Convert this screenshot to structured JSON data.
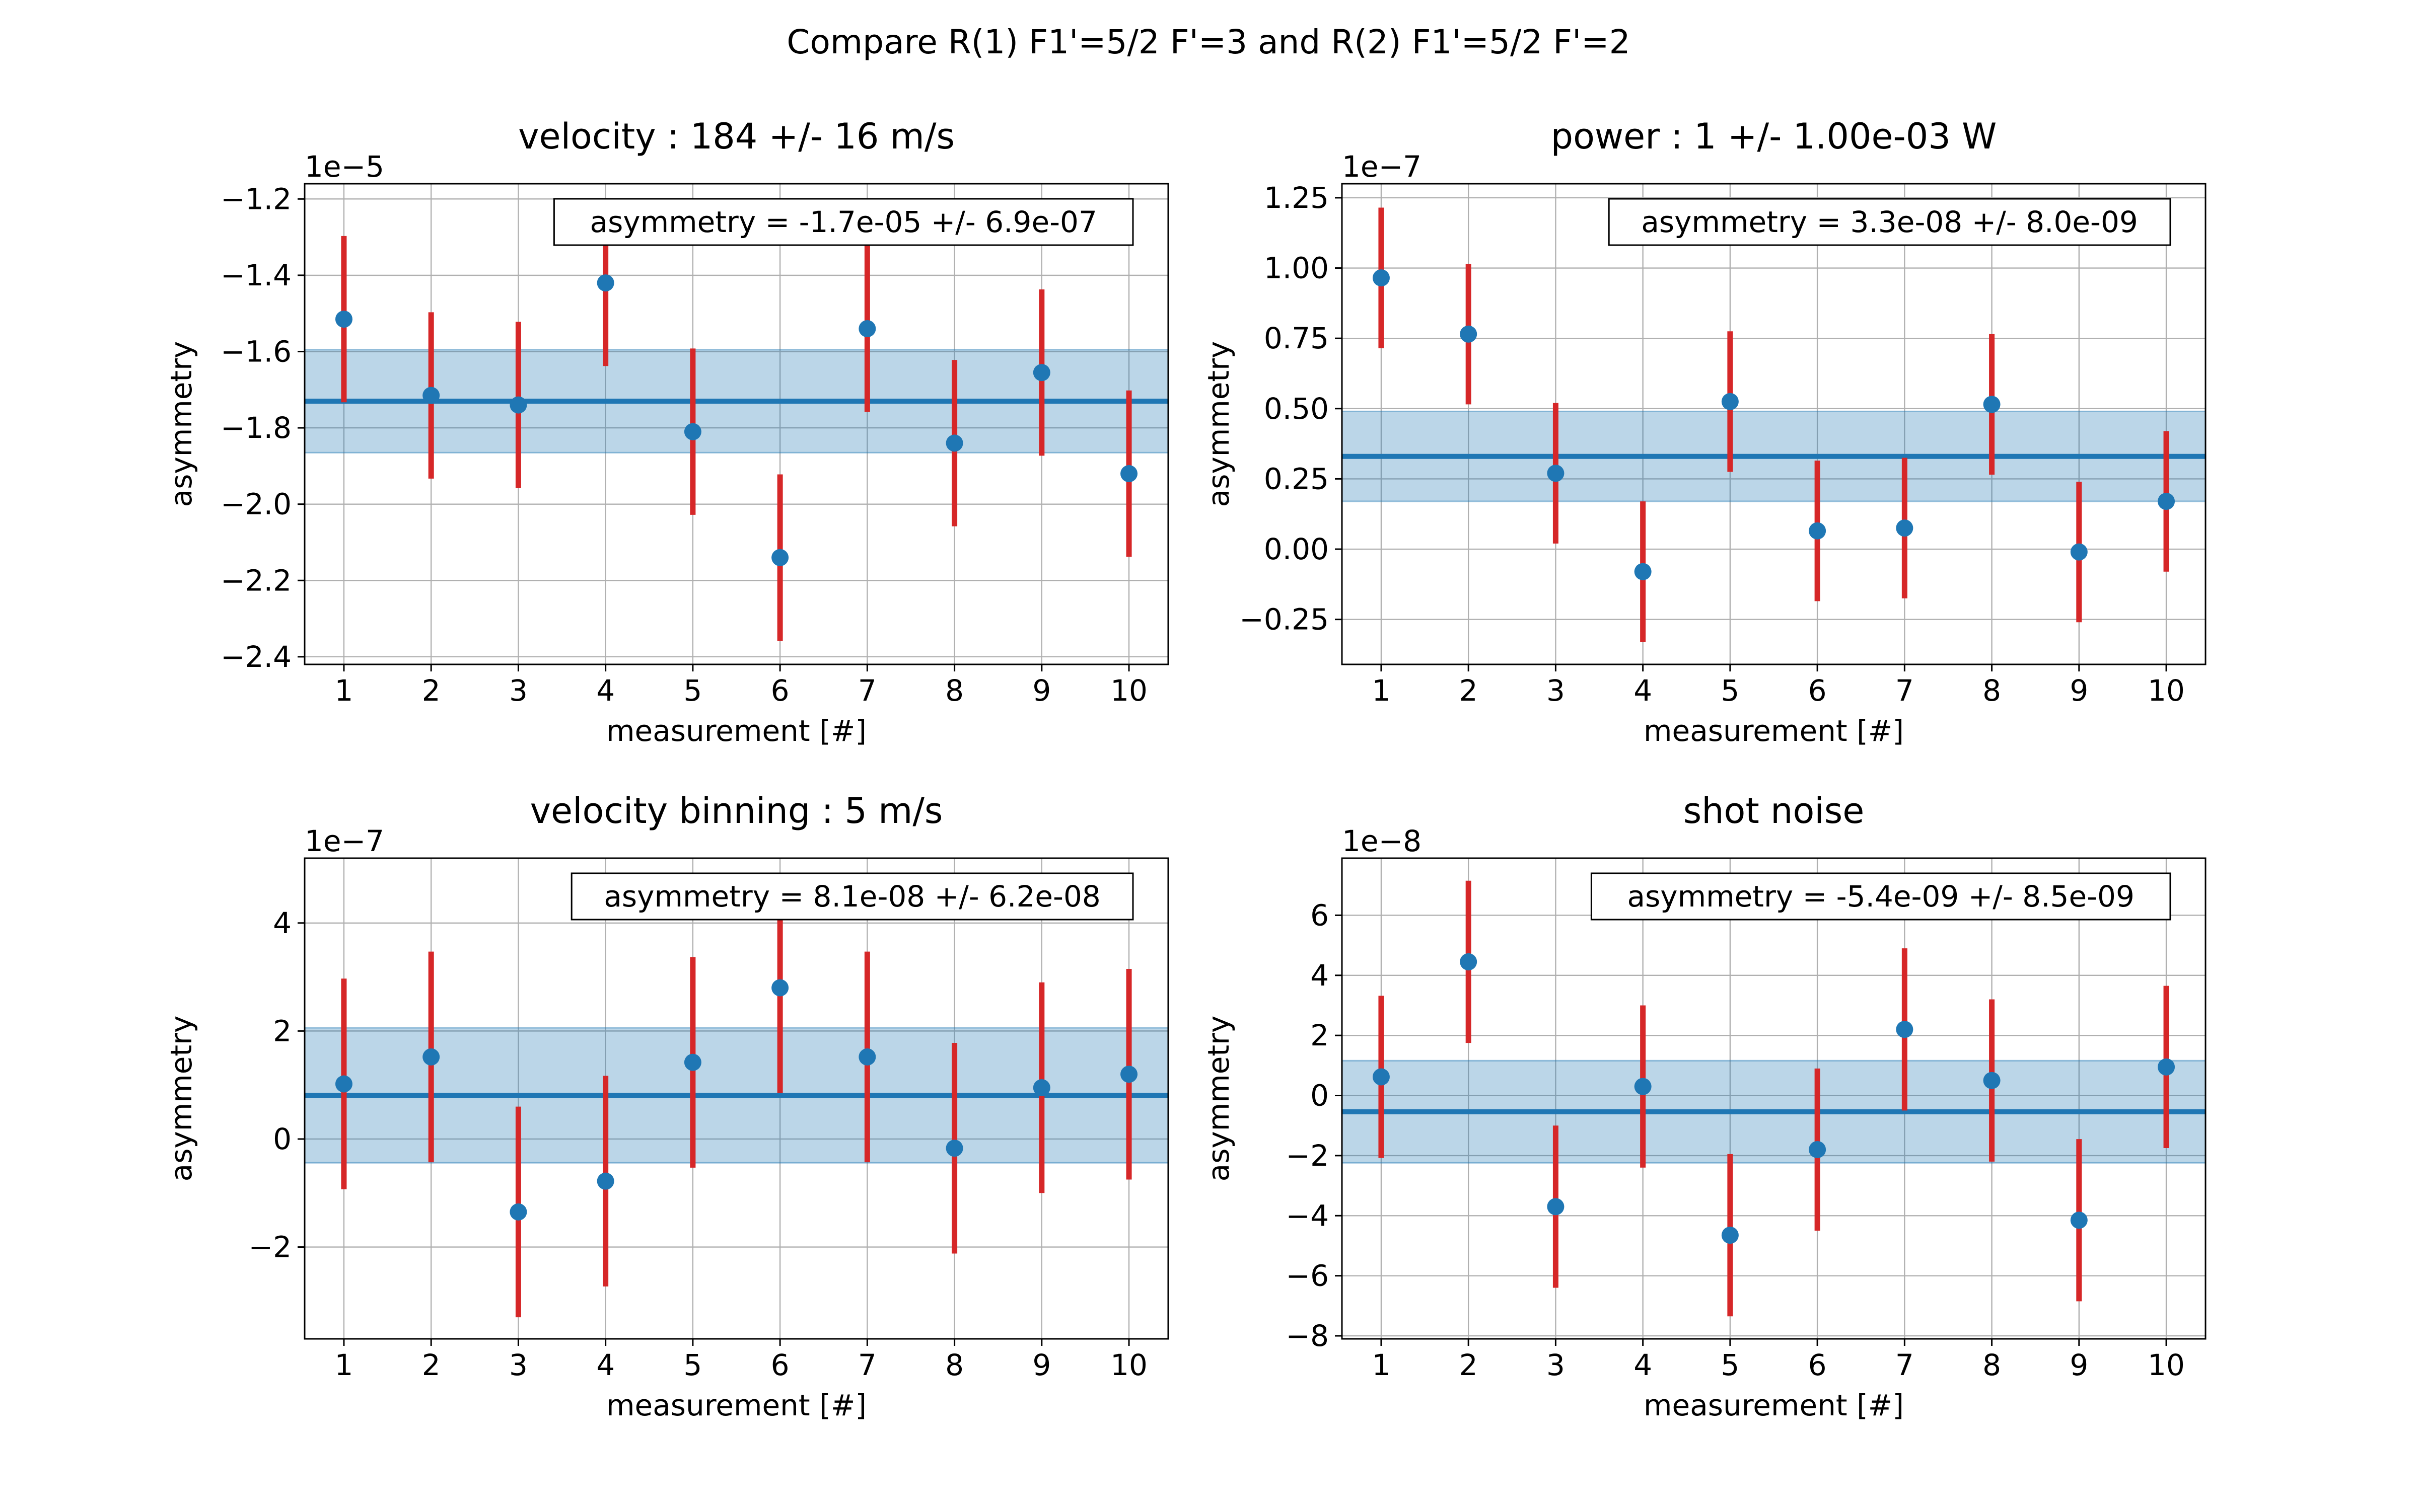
{
  "figure": {
    "suptitle": "Compare R(1) F1'=5/2 F'=3 and R(2) F1'=5/2 F'=2"
  },
  "colors": {
    "points": "#1f77b4",
    "errorbars": "#d62728",
    "band": "#1f77b4",
    "grid": "#b0b0b0",
    "axes": "#000000"
  },
  "chart_data": [
    {
      "type": "scatter",
      "title": "velocity : 184 +/- 16 m/s",
      "xlabel": "measurement [#]",
      "ylabel": "asymmetry",
      "offset_label": "1e−5",
      "annotation": "asymmetry = -1.7e-05 +/- 6.9e-07",
      "grid": true,
      "xlim": [
        0.55,
        10.45
      ],
      "ylim": [
        -2.42,
        -1.16
      ],
      "xticks": [
        1,
        2,
        3,
        4,
        5,
        6,
        7,
        8,
        9,
        10
      ],
      "yticks": [
        -2.4,
        -2.2,
        -2.0,
        -1.8,
        -1.6,
        -1.4,
        -1.2
      ],
      "yticklabels": [
        "−2.4",
        "−2.2",
        "−2.0",
        "−1.8",
        "−1.6",
        "−1.4",
        "−1.2"
      ],
      "x": [
        1,
        2,
        3,
        4,
        5,
        6,
        7,
        8,
        9,
        10
      ],
      "y": [
        -1.515,
        -1.715,
        -1.74,
        -1.42,
        -1.81,
        -2.14,
        -1.54,
        -1.84,
        -1.655,
        -1.92
      ],
      "yerr": [
        0.218,
        0.218,
        0.218,
        0.218,
        0.218,
        0.218,
        0.218,
        0.218,
        0.218,
        0.218
      ],
      "mean": -1.73,
      "mean_err": 0.135
    },
    {
      "type": "scatter",
      "title": "power : 1 +/- 1.00e-03 W",
      "xlabel": "measurement [#]",
      "ylabel": "asymmetry",
      "offset_label": "1e−7",
      "annotation": "asymmetry = 3.3e-08 +/- 8.0e-09",
      "grid": true,
      "xlim": [
        0.55,
        10.45
      ],
      "ylim": [
        -0.41,
        1.3
      ],
      "xticks": [
        1,
        2,
        3,
        4,
        5,
        6,
        7,
        8,
        9,
        10
      ],
      "yticks": [
        -0.25,
        0.0,
        0.25,
        0.5,
        0.75,
        1.0,
        1.25
      ],
      "yticklabels": [
        "−0.25",
        "0.00",
        "0.25",
        "0.50",
        "0.75",
        "1.00",
        "1.25"
      ],
      "x": [
        1,
        2,
        3,
        4,
        5,
        6,
        7,
        8,
        9,
        10
      ],
      "y": [
        0.965,
        0.765,
        0.27,
        -0.08,
        0.525,
        0.065,
        0.075,
        0.515,
        -0.01,
        0.17
      ],
      "yerr": [
        0.25,
        0.25,
        0.25,
        0.25,
        0.25,
        0.25,
        0.25,
        0.25,
        0.25,
        0.25
      ],
      "mean": 0.33,
      "mean_err": 0.16
    },
    {
      "type": "scatter",
      "title": "velocity binning : 5 m/s",
      "xlabel": "measurement [#]",
      "ylabel": "asymmetry",
      "offset_label": "1e−7",
      "annotation": "asymmetry = 8.1e-08 +/- 6.2e-08",
      "grid": true,
      "xlim": [
        0.55,
        10.45
      ],
      "ylim": [
        -3.7,
        5.2
      ],
      "xticks": [
        1,
        2,
        3,
        4,
        5,
        6,
        7,
        8,
        9,
        10
      ],
      "yticks": [
        -2,
        0,
        2,
        4
      ],
      "yticklabels": [
        "−2",
        "0",
        "2",
        "4"
      ],
      "x": [
        1,
        2,
        3,
        4,
        5,
        6,
        7,
        8,
        9,
        10
      ],
      "y": [
        1.02,
        1.52,
        -1.35,
        -0.78,
        1.42,
        2.8,
        1.52,
        -0.17,
        0.95,
        1.2
      ],
      "yerr": [
        1.95,
        1.95,
        1.95,
        1.95,
        1.95,
        1.95,
        1.95,
        1.95,
        1.95,
        1.95
      ],
      "mean": 0.81,
      "mean_err": 1.25
    },
    {
      "type": "scatter",
      "title": "shot noise",
      "xlabel": "measurement [#]",
      "ylabel": "asymmetry",
      "offset_label": "1e−8",
      "annotation": "asymmetry = -5.4e-09 +/- 8.5e-09",
      "grid": true,
      "xlim": [
        0.55,
        10.45
      ],
      "ylim": [
        -8.1,
        7.9
      ],
      "xticks": [
        1,
        2,
        3,
        4,
        5,
        6,
        7,
        8,
        9,
        10
      ],
      "yticks": [
        -8,
        -6,
        -4,
        -2,
        0,
        2,
        4,
        6
      ],
      "yticklabels": [
        "−8",
        "−6",
        "−4",
        "−2",
        "0",
        "2",
        "4",
        "6"
      ],
      "x": [
        1,
        2,
        3,
        4,
        5,
        6,
        7,
        8,
        9,
        10
      ],
      "y": [
        0.62,
        4.45,
        -3.7,
        0.3,
        -4.65,
        -1.8,
        2.2,
        0.5,
        -4.15,
        0.95
      ],
      "yerr": [
        2.7,
        2.7,
        2.7,
        2.7,
        2.7,
        2.7,
        2.7,
        2.7,
        2.7,
        2.7
      ],
      "mean": -0.54,
      "mean_err": 1.7
    }
  ]
}
